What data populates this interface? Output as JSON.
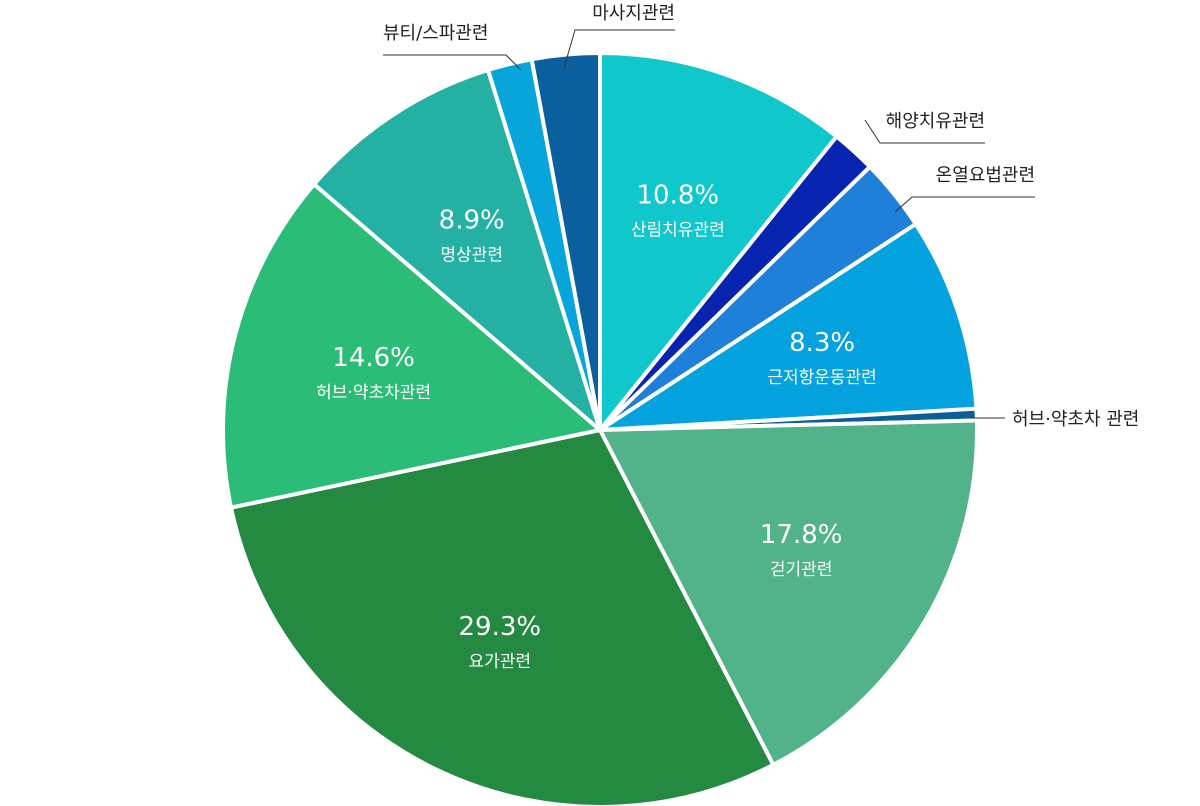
{
  "chart_data": {
    "type": "pie",
    "start_angle_deg": 0,
    "direction": "clockwise",
    "slices": [
      {
        "label": "산림치유관련",
        "value": 10.8,
        "value_label": "10.8%",
        "color": "#10C7CC",
        "label_position": "inside"
      },
      {
        "label": "해양치유관련",
        "value": 1.9,
        "value_label": "",
        "color": "#0624B0",
        "label_position": "outside"
      },
      {
        "label": "온열요법관련",
        "value": 3.1,
        "value_label": "",
        "color": "#1E80D8",
        "label_position": "outside"
      },
      {
        "label": "근저항운동관련",
        "value": 8.3,
        "value_label": "8.3%",
        "color": "#04A2DF",
        "label_position": "inside"
      },
      {
        "label": "허브·약초차 관련",
        "value": 0.5,
        "value_label": "",
        "color": "#0C5E96",
        "label_position": "outside"
      },
      {
        "label": "걷기관련",
        "value": 17.8,
        "value_label": "17.8%",
        "color": "#52B38A",
        "label_position": "inside"
      },
      {
        "label": "요가관련",
        "value": 29.3,
        "value_label": "29.3%",
        "color": "#248A42",
        "label_position": "inside"
      },
      {
        "label": "허브·약초차관련",
        "value": 14.6,
        "value_label": "14.6%",
        "color": "#2BBD78",
        "label_position": "inside"
      },
      {
        "label": "명상관련",
        "value": 8.9,
        "value_label": "8.9%",
        "color": "#22B1A2",
        "label_position": "inside"
      },
      {
        "label": "뷰티/스파관련",
        "value": 1.9,
        "value_label": "",
        "color": "#07A5DA",
        "label_position": "outside"
      },
      {
        "label": "마사지관련",
        "value": 2.9,
        "value_label": "",
        "color": "#0A5F9E",
        "label_position": "outside"
      }
    ]
  }
}
